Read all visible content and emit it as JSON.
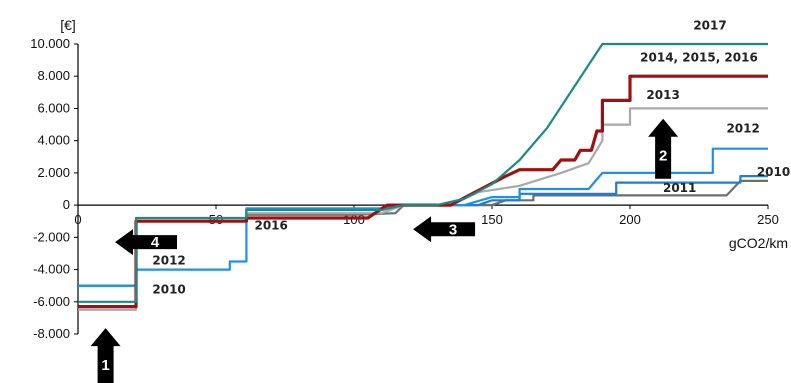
{
  "chart_data": {
    "type": "line",
    "title": "",
    "xlabel": "gCO2/km",
    "ylabel": "[€]",
    "xlim": [
      0,
      250
    ],
    "ylim": [
      -8000,
      10000
    ],
    "x_ticks": [
      0,
      50,
      100,
      150,
      200,
      250
    ],
    "x_tick_labels": [
      "0",
      "50",
      "100",
      "150",
      "200",
      "250"
    ],
    "y_ticks": [
      10000,
      8000,
      6000,
      4000,
      2000,
      0,
      -2000,
      -4000,
      -6000,
      -8000
    ],
    "y_tick_labels": [
      "10.000",
      "8.000",
      "6.000",
      "4.000",
      "2.000",
      "0",
      "-2.000",
      "-4.000",
      "-6.000",
      "-8.000"
    ],
    "grid": false,
    "series": [
      {
        "name": "2010",
        "color": "#6e6e6e",
        "points": [
          [
            0,
            -5000
          ],
          [
            21,
            -5000
          ],
          [
            21,
            -1000
          ],
          [
            61,
            -1000
          ],
          [
            61,
            -600
          ],
          [
            100,
            -600
          ],
          [
            115,
            -500
          ],
          [
            118,
            0
          ],
          [
            150,
            0
          ],
          [
            155,
            300
          ],
          [
            165,
            300
          ],
          [
            165,
            600
          ],
          [
            235,
            600
          ],
          [
            240,
            1500
          ],
          [
            250,
            1500
          ]
        ]
      },
      {
        "name": "2011",
        "color": "#1e7fd0",
        "points": [
          [
            0,
            -5000
          ],
          [
            21,
            -5000
          ],
          [
            21,
            -1000
          ],
          [
            61,
            -1000
          ],
          [
            61,
            -300
          ],
          [
            110,
            -300
          ],
          [
            118,
            0
          ],
          [
            145,
            0
          ],
          [
            150,
            300
          ],
          [
            160,
            300
          ],
          [
            160,
            700
          ],
          [
            195,
            700
          ],
          [
            195,
            1400
          ],
          [
            240,
            1400
          ],
          [
            240,
            1800
          ],
          [
            250,
            1800
          ]
        ]
      },
      {
        "name": "2012",
        "color": "#1e90e6",
        "points": [
          [
            0,
            -5000
          ],
          [
            21,
            -5000
          ],
          [
            21,
            -4000
          ],
          [
            55,
            -4000
          ],
          [
            55,
            -3500
          ],
          [
            61,
            -3500
          ],
          [
            61,
            -200
          ],
          [
            110,
            -200
          ],
          [
            118,
            0
          ],
          [
            140,
            0
          ],
          [
            150,
            500
          ],
          [
            160,
            500
          ],
          [
            160,
            1000
          ],
          [
            185,
            1000
          ],
          [
            190,
            2000
          ],
          [
            230,
            2000
          ],
          [
            230,
            3500
          ],
          [
            250,
            3500
          ]
        ]
      },
      {
        "name": "2013",
        "color": "#a9a9a9",
        "points": [
          [
            0,
            -6500
          ],
          [
            21,
            -6500
          ],
          [
            21,
            -1000
          ],
          [
            61,
            -1000
          ],
          [
            61,
            -500
          ],
          [
            110,
            -500
          ],
          [
            118,
            0
          ],
          [
            135,
            0
          ],
          [
            145,
            800
          ],
          [
            160,
            1200
          ],
          [
            175,
            2000
          ],
          [
            185,
            2600
          ],
          [
            190,
            4000
          ],
          [
            190,
            5000
          ],
          [
            200,
            5000
          ],
          [
            200,
            6000
          ],
          [
            250,
            6000
          ]
        ]
      },
      {
        "name": "2014, 2015, 2016",
        "color": "#a01010",
        "points": [
          [
            0,
            -6300
          ],
          [
            21,
            -6300
          ],
          [
            21,
            -1000
          ],
          [
            61,
            -1000
          ],
          [
            61,
            -800
          ],
          [
            105,
            -800
          ],
          [
            112,
            0
          ],
          [
            135,
            0
          ],
          [
            145,
            900
          ],
          [
            155,
            1800
          ],
          [
            160,
            2200
          ],
          [
            172,
            2200
          ],
          [
            175,
            2800
          ],
          [
            180,
            2800
          ],
          [
            182,
            3400
          ],
          [
            186,
            3400
          ],
          [
            188,
            4600
          ],
          [
            190,
            4600
          ],
          [
            190,
            6500
          ],
          [
            200,
            6500
          ],
          [
            200,
            8000
          ],
          [
            250,
            8000
          ]
        ]
      },
      {
        "name": "2017",
        "color": "#1a8a84",
        "points": [
          [
            0,
            -6000
          ],
          [
            21,
            -6000
          ],
          [
            21,
            -800
          ],
          [
            61,
            -800
          ],
          [
            61,
            -300
          ],
          [
            110,
            -300
          ],
          [
            118,
            0
          ],
          [
            130,
            0
          ],
          [
            140,
            400
          ],
          [
            150,
            1300
          ],
          [
            160,
            2800
          ],
          [
            170,
            4800
          ],
          [
            180,
            7400
          ],
          [
            190,
            10000
          ],
          [
            250,
            10000
          ]
        ]
      }
    ],
    "annotations": [
      {
        "text": "2017",
        "x": 229,
        "y": 10900
      },
      {
        "text": "2014, 2015, 2016",
        "x": 225,
        "y": 8900
      },
      {
        "text": "2013",
        "x": 212,
        "y": 6600
      },
      {
        "text": "2012",
        "x": 241,
        "y": 4500
      },
      {
        "text": "2010",
        "x": 252,
        "y": 1800
      },
      {
        "text": "2011",
        "x": 218,
        "y": 800
      },
      {
        "text": "2012",
        "x": 33,
        "y": -3700
      },
      {
        "text": "2010",
        "x": 33,
        "y": -5500
      },
      {
        "text": "2016",
        "x": 70,
        "y": -1500,
        "color": "#c0392b"
      }
    ],
    "arrows": [
      {
        "label": "1",
        "direction": "up",
        "x": 10,
        "y": -9500
      },
      {
        "label": "2",
        "direction": "up",
        "x": 212,
        "y": 3500
      },
      {
        "label": "3",
        "direction": "left",
        "x": 133,
        "y": -1500
      },
      {
        "label": "4",
        "direction": "left",
        "x": 25,
        "y": -2300
      }
    ]
  }
}
